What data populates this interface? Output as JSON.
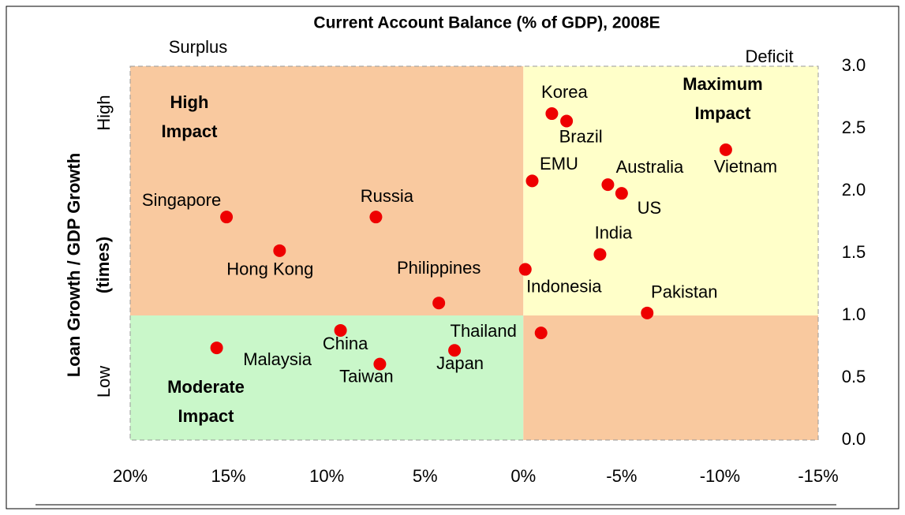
{
  "chart_data": {
    "type": "scatter",
    "title": "Current Account Balance (% of GDP), 2008E",
    "ylabel": [
      "Loan Growth / GDP Growth",
      "(times)"
    ],
    "annotations": {
      "left": "Surplus",
      "right": "Deficit",
      "high": "High",
      "low": "Low"
    },
    "regions": [
      {
        "label": [
          "High",
          "Impact"
        ],
        "xrange": [
          20,
          0
        ],
        "yrange": [
          1,
          3
        ],
        "color": "#f9c99f"
      },
      {
        "label": [
          "Maximum",
          "Impact"
        ],
        "xrange": [
          0,
          -15
        ],
        "yrange": [
          1,
          3
        ],
        "color": "#ffffc9"
      },
      {
        "label": [
          "Moderate",
          "Impact"
        ],
        "xrange": [
          20,
          0
        ],
        "yrange": [
          0,
          1
        ],
        "color": "#c9f7c9"
      },
      {
        "xrange": [
          0,
          -15
        ],
        "yrange": [
          0,
          1
        ],
        "color": "#f9c99f"
      }
    ],
    "color": "#ee0000",
    "points": [
      {
        "name": "Korea",
        "x": -1.45,
        "y": 2.62
      },
      {
        "name": "Brazil",
        "x": -2.2,
        "y": 2.56
      },
      {
        "name": "Vietnam",
        "x": -10.3,
        "y": 2.33
      },
      {
        "name": "EMU",
        "x": -0.45,
        "y": 2.08
      },
      {
        "name": "Australia",
        "x": -4.3,
        "y": 2.05
      },
      {
        "name": "US",
        "x": -5.0,
        "y": 1.98
      },
      {
        "name": "Singapore",
        "x": 15.1,
        "y": 1.79
      },
      {
        "name": "Russia",
        "x": 7.5,
        "y": 1.79
      },
      {
        "name": "Hong Kong",
        "x": 12.4,
        "y": 1.52
      },
      {
        "name": "India",
        "x": -3.9,
        "y": 1.49
      },
      {
        "name": "Indonesia",
        "x": -0.1,
        "y": 1.37
      },
      {
        "name": "Philippines",
        "x": 4.3,
        "y": 1.1
      },
      {
        "name": "Pakistan",
        "x": -6.3,
        "y": 1.02
      },
      {
        "name": "Thailand",
        "x": -0.9,
        "y": 0.86
      },
      {
        "name": "China",
        "x": 9.3,
        "y": 0.88
      },
      {
        "name": "Malaysia",
        "x": 15.6,
        "y": 0.74
      },
      {
        "name": "Japan",
        "x": 3.5,
        "y": 0.72
      },
      {
        "name": "Taiwan",
        "x": 7.3,
        "y": 0.61
      }
    ],
    "xlim": [
      20,
      -15
    ],
    "ylim": [
      0,
      3
    ],
    "xticks": [
      {
        "value": 20,
        "label": "20%"
      },
      {
        "value": 15,
        "label": "15%"
      },
      {
        "value": 10,
        "label": "10%"
      },
      {
        "value": 5,
        "label": "5%"
      },
      {
        "value": 0,
        "label": "0%"
      },
      {
        "value": -5,
        "label": "-5%"
      },
      {
        "value": -10,
        "label": "-10%"
      },
      {
        "value": -15,
        "label": "-15%"
      }
    ],
    "yticks": [
      {
        "value": 0,
        "label": "0.0"
      },
      {
        "value": 0.5,
        "label": "0.5"
      },
      {
        "value": 1,
        "label": "1.0"
      },
      {
        "value": 1.5,
        "label": "1.5"
      },
      {
        "value": 2,
        "label": "2.0"
      },
      {
        "value": 2.5,
        "label": "2.5"
      },
      {
        "value": 3,
        "label": "3.0"
      }
    ]
  }
}
